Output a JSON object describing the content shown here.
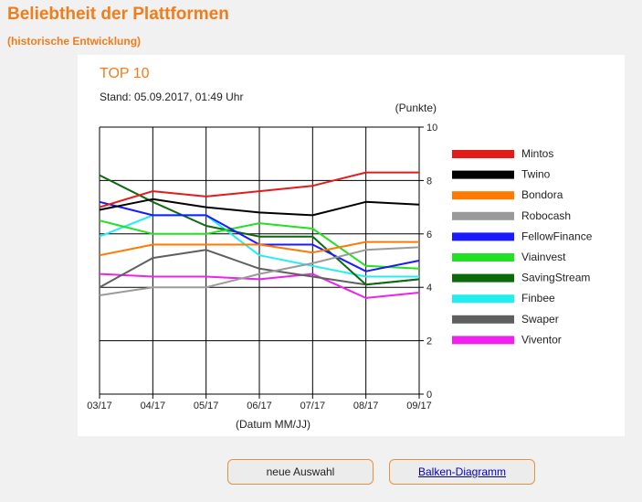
{
  "header": {
    "title": "Beliebtheit der Plattformen",
    "subtitle": "(historische Entwicklung)"
  },
  "buttons": {
    "new_selection": "neue Auswahl",
    "bar_chart": "Balken-Diagramm"
  },
  "chart_data": {
    "type": "line",
    "title": "TOP 10",
    "subtitle": "Stand: 05.09.2017, 01:49 Uhr",
    "ylabel": "(Punkte)",
    "xlabel": "(Datum MM/JJ)",
    "categories": [
      "03/17",
      "04/17",
      "05/17",
      "06/17",
      "07/17",
      "08/17",
      "09/17"
    ],
    "ylim": [
      0,
      10
    ],
    "yticks": [
      0,
      2,
      4,
      6,
      8,
      10
    ],
    "grid": true,
    "legend_position": "right",
    "series": [
      {
        "name": "Mintos",
        "color": "#e31b1b",
        "values": [
          7.0,
          7.6,
          7.4,
          7.6,
          7.8,
          8.3,
          8.3
        ]
      },
      {
        "name": "Twino",
        "color": "#000000",
        "values": [
          6.9,
          7.3,
          7.0,
          6.8,
          6.7,
          7.2,
          7.1
        ]
      },
      {
        "name": "Bondora",
        "color": "#ff7a00",
        "values": [
          5.2,
          5.6,
          5.6,
          5.6,
          5.3,
          5.7,
          5.7
        ]
      },
      {
        "name": "Robocash",
        "color": "#9a9a9a",
        "values": [
          3.7,
          4.0,
          4.0,
          4.5,
          4.9,
          5.4,
          5.5
        ]
      },
      {
        "name": "FellowFinance",
        "color": "#1a1aff",
        "values": [
          7.2,
          6.7,
          6.7,
          5.6,
          5.6,
          4.6,
          5.0
        ]
      },
      {
        "name": "Viainvest",
        "color": "#22e022",
        "values": [
          6.5,
          6.0,
          6.0,
          6.4,
          6.2,
          4.8,
          4.7
        ]
      },
      {
        "name": "SavingStream",
        "color": "#0b6b0b",
        "values": [
          8.2,
          7.2,
          6.3,
          5.9,
          5.9,
          4.1,
          4.3
        ]
      },
      {
        "name": "Finbee",
        "color": "#22eef0",
        "values": [
          5.9,
          6.7,
          6.7,
          5.2,
          4.8,
          4.4,
          4.4
        ]
      },
      {
        "name": "Swaper",
        "color": "#5f5f5f",
        "values": [
          4.0,
          5.1,
          5.4,
          4.7,
          4.4,
          4.1,
          4.3
        ]
      },
      {
        "name": "Viventor",
        "color": "#ee22ee",
        "values": [
          4.5,
          4.4,
          4.4,
          4.3,
          4.5,
          3.6,
          3.8
        ]
      }
    ]
  }
}
